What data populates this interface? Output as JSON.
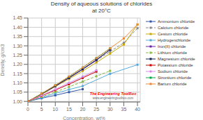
{
  "chart_data": {
    "type": "line",
    "title": "Density of aqueous solutions of chlorides",
    "subtitle": "at 20°C",
    "x_label": "Concentration, wt%",
    "y_label": "Density, g/cm3",
    "xlim": [
      0,
      41
    ],
    "ylim": [
      0.997,
      1.45
    ],
    "xticks": [
      0,
      5,
      10,
      15,
      20,
      25,
      30,
      35,
      40
    ],
    "yticks": [
      {
        "value": 1.0,
        "label": "1.00"
      },
      1.05,
      {
        "value": 1.1,
        "label": "1.10"
      },
      1.15,
      {
        "value": 1.2,
        "label": "1.20"
      },
      1.25,
      {
        "value": 1.3,
        "label": "1.30"
      },
      1.35,
      {
        "value": 1.4,
        "label": "1.40"
      },
      1.45
    ],
    "grid": true,
    "legend": "right",
    "annotations": [
      "The Engineering ToolBox",
      "www.engineeringtoolbox.com"
    ],
    "series": [
      {
        "name": "Ammonium chloride",
        "color": "#3355aa",
        "marker": "square",
        "line_style": "solid",
        "x": [
          0,
          5,
          10,
          15,
          20
        ],
        "values": [
          1.0,
          1.017,
          1.033,
          1.05,
          1.066
        ]
      },
      {
        "name": "Calcium chloride",
        "color": "#888888",
        "marker": "square",
        "line_style": "dashed",
        "x": [
          0,
          5,
          10,
          15,
          20,
          25,
          30,
          35,
          40
        ],
        "values": [
          1.0,
          1.041,
          1.083,
          1.128,
          1.174,
          1.221,
          1.269,
          1.316,
          1.395
        ]
      },
      {
        "name": "Cesium chloride",
        "color": "#ccaa00",
        "marker": "square",
        "line_style": "solid",
        "x": [
          0,
          5,
          10,
          15,
          20,
          25,
          30,
          35,
          40
        ],
        "values": [
          1.0,
          1.038,
          1.08,
          1.121,
          1.164,
          1.21,
          1.258,
          1.307,
          1.415
        ]
      },
      {
        "name": "Hydrogenchloride",
        "color": "#55aadd",
        "marker": "square",
        "line_style": "solid",
        "x": [
          0,
          5,
          10,
          15,
          20,
          30,
          40
        ],
        "values": [
          1.0,
          1.021,
          1.043,
          1.064,
          1.083,
          1.149,
          1.198
        ]
      },
      {
        "name": "Iron(II) chloride",
        "color": "#6622aa",
        "marker": "square",
        "line_style": "solid",
        "x": [
          0,
          5,
          10,
          15,
          20,
          25,
          30
        ],
        "values": [
          1.0,
          1.04,
          1.082,
          1.126,
          1.173,
          1.222,
          1.28
        ]
      },
      {
        "name": "Lithium chloride",
        "color": "#88bb44",
        "marker": "square",
        "line_style": "dashed",
        "x": [
          0,
          5,
          10,
          15,
          20,
          25,
          30
        ],
        "values": [
          1.0,
          1.025,
          1.051,
          1.078,
          1.107,
          1.136,
          1.165
        ]
      },
      {
        "name": "Magnesium chloride",
        "color": "#112255",
        "marker": "square",
        "line_style": "solid",
        "x": [
          0,
          5,
          10,
          15,
          20,
          25,
          30
        ],
        "values": [
          1.0,
          1.04,
          1.083,
          1.128,
          1.175,
          1.225,
          1.279
        ]
      },
      {
        "name": "Potassium chloride",
        "color": "#cc0000",
        "marker": "square",
        "line_style": "solid",
        "x": [
          0,
          5,
          10,
          15,
          20,
          25
        ],
        "values": [
          1.0,
          1.03,
          1.061,
          1.093,
          1.127,
          1.161
        ]
      },
      {
        "name": "Sodium chloride",
        "color": "#dd88ee",
        "marker": "square",
        "line_style": "solid",
        "x": [
          0,
          5,
          10,
          15,
          20,
          25
        ],
        "values": [
          1.0,
          1.032,
          1.065,
          1.1,
          1.134,
          1.168
        ]
      },
      {
        "name": "Strontium chloride",
        "color": "#00aa44",
        "marker": "square",
        "line_style": "solid",
        "x": [
          0,
          5,
          10,
          15,
          20,
          25,
          30
        ],
        "values": [
          1.0,
          1.042,
          1.087,
          1.134,
          1.183,
          1.234,
          1.286
        ]
      },
      {
        "name": "Barium chloride",
        "color": "#ee8833",
        "marker": "square",
        "line_style": "solid",
        "x": [
          0,
          5,
          10,
          15,
          20,
          25,
          30,
          35,
          40
        ],
        "values": [
          1.0,
          1.042,
          1.087,
          1.134,
          1.183,
          1.234,
          1.286,
          1.34,
          1.415
        ]
      }
    ]
  }
}
